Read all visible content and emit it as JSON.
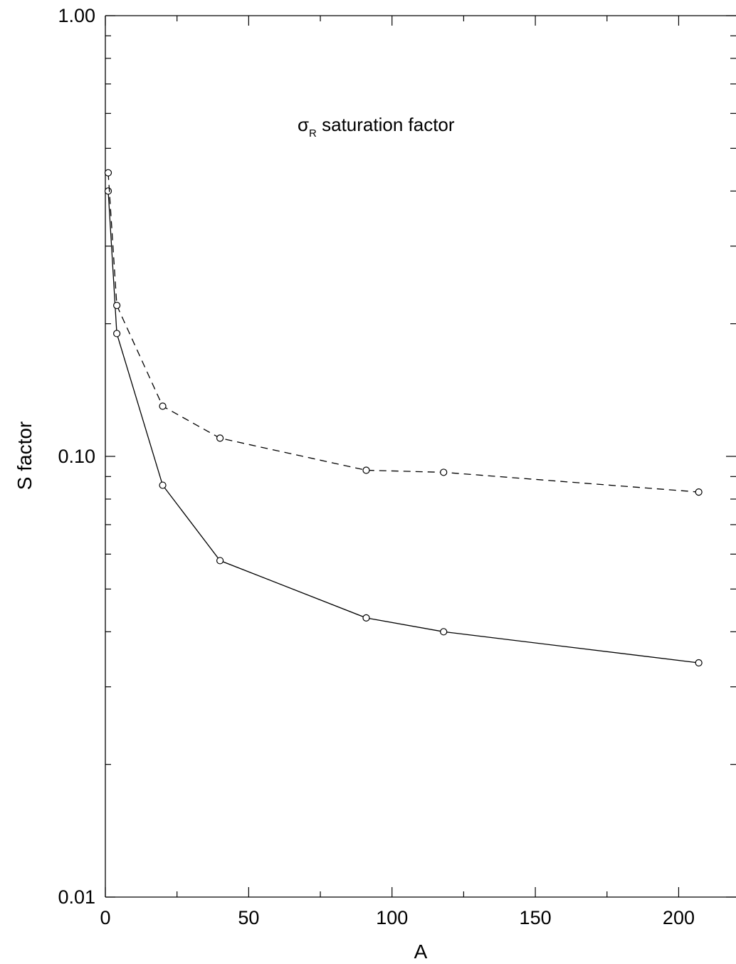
{
  "chart_data": {
    "type": "line",
    "title": "",
    "xlabel": "A",
    "ylabel": "S factor",
    "xlim": [
      0,
      220
    ],
    "ylim": [
      0.01,
      1.0
    ],
    "yscale": "log",
    "grid": false,
    "x_ticks": [
      0,
      50,
      100,
      150,
      200
    ],
    "x_tick_labels": [
      "0",
      "50",
      "100",
      "150",
      "200"
    ],
    "y_ticks": [
      0.01,
      0.1,
      1.0
    ],
    "y_tick_labels": [
      "0.01",
      "0.10",
      "1.00"
    ],
    "annotation": {
      "symbol": "σ",
      "subscript": "R",
      "text": " saturation factor"
    },
    "series": [
      {
        "line_style": "solid",
        "marker": "open-circle",
        "x": [
          1,
          4,
          20,
          40,
          91,
          118,
          207
        ],
        "y": [
          0.4,
          0.19,
          0.086,
          0.058,
          0.043,
          0.04,
          0.034
        ]
      },
      {
        "line_style": "dashed",
        "marker": "open-circle",
        "x": [
          1,
          4,
          20,
          40,
          91,
          118,
          207
        ],
        "y": [
          0.44,
          0.22,
          0.13,
          0.11,
          0.093,
          0.092,
          0.083
        ]
      }
    ]
  }
}
